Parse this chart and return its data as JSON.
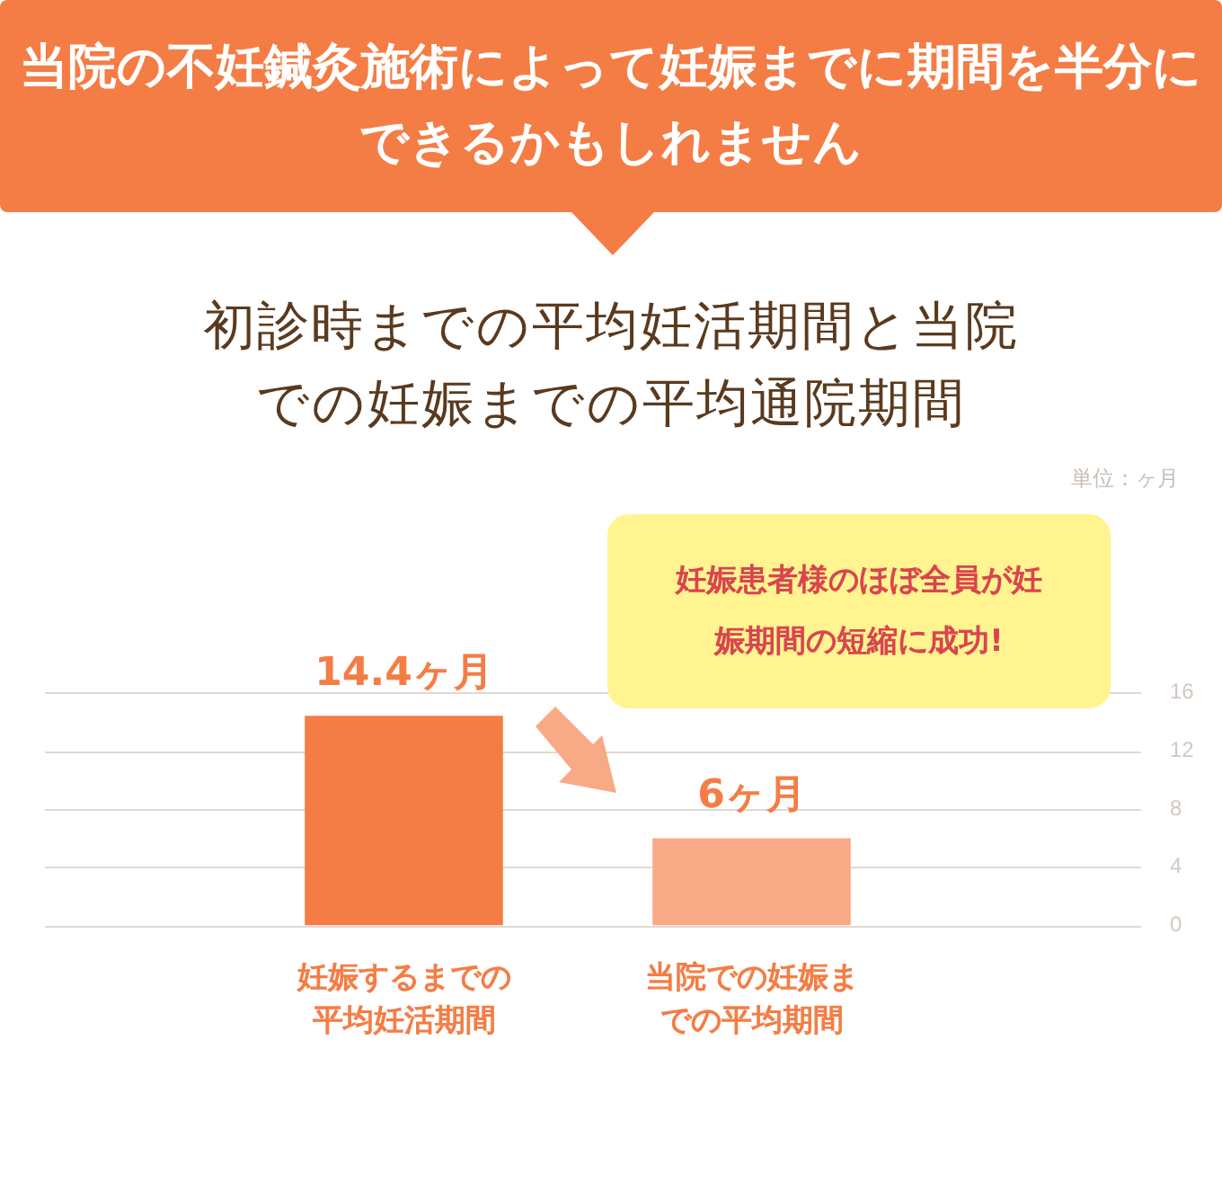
{
  "chart_data": {
    "type": "bar",
    "title": "当院の不妊鍼灸施術によって妊娠までに期間を半分にできるかもしれません",
    "subtitle": "初診時までの平均妊活期間と当院での妊娠までの平均通院期間",
    "categories": [
      "妊娠するまでの平均妊活期間",
      "当院での妊娠までの平均期間"
    ],
    "values": [
      14.4,
      6
    ],
    "colors": [
      "#f47d45",
      "#f7aa85"
    ],
    "value_labels": [
      "14.4ヶ月",
      "6ヶ月"
    ],
    "ylim": [
      0,
      16
    ],
    "yticks": [
      0,
      4,
      8,
      12,
      16
    ],
    "grid": "y",
    "annotations": [
      "単位：ヶ月",
      "妊娠患者様のほぼ全員が妊娠期間の短縮に成功!"
    ]
  }
}
